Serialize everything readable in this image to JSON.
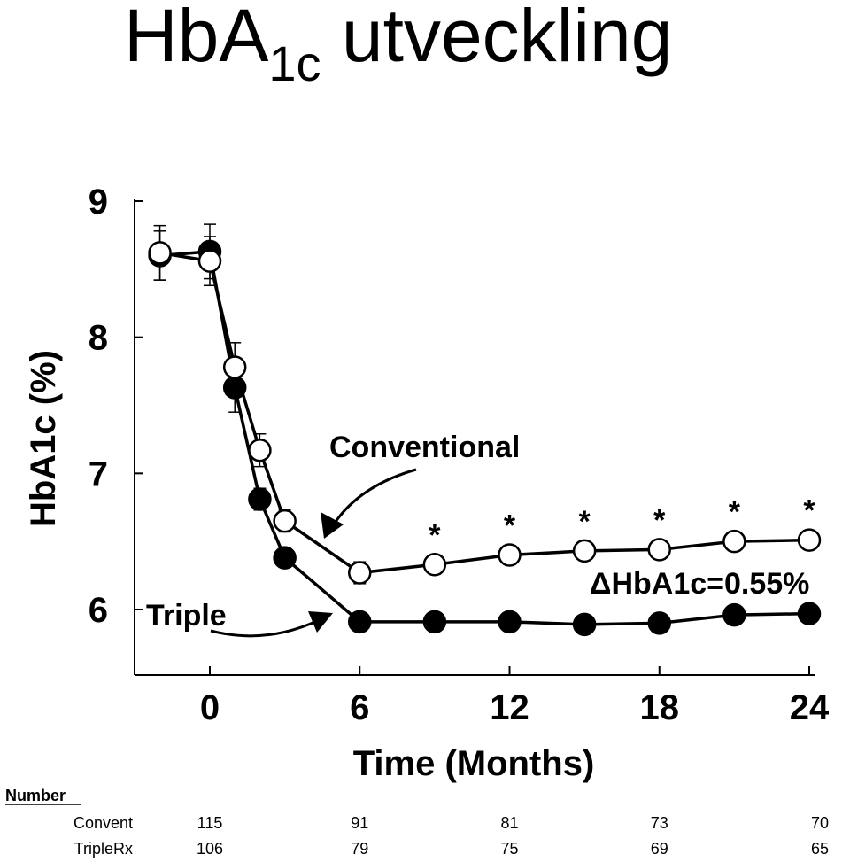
{
  "slide": {
    "title_main": "HbA",
    "title_sub": "1c",
    "title_rest": " utveckling"
  },
  "chart_data": {
    "type": "line",
    "xlabel": "Time (Months)",
    "ylabel": "HbA1c (%)",
    "xlim": [
      -3,
      24
    ],
    "ylim": [
      5.5,
      9
    ],
    "x_ticks": [
      0,
      6,
      12,
      18,
      24
    ],
    "y_ticks": [
      6,
      7,
      8,
      9
    ],
    "series": [
      {
        "name": "Conventional",
        "marker": "open-circle",
        "color": "#000000",
        "x": [
          -2,
          0,
          1,
          2,
          3,
          6,
          9,
          12,
          15,
          18,
          21,
          24
        ],
        "y": [
          8.62,
          8.56,
          7.78,
          7.17,
          6.65,
          6.27,
          6.33,
          6.4,
          6.43,
          6.44,
          6.5,
          6.51
        ],
        "err": [
          0.2,
          0.18,
          0.18,
          0.12,
          0.08,
          0.08,
          0.07,
          0.07,
          0.07,
          0.07,
          0.07,
          0.07
        ]
      },
      {
        "name": "Triple",
        "marker": "filled-circle",
        "color": "#000000",
        "x": [
          -2,
          0,
          1,
          2,
          3,
          6,
          9,
          12,
          15,
          18,
          21,
          24
        ],
        "y": [
          8.6,
          8.63,
          7.63,
          6.81,
          6.38,
          5.91,
          5.91,
          5.91,
          5.89,
          5.9,
          5.96,
          5.97
        ],
        "err": [
          0.18,
          0.2,
          0.18,
          0.08,
          0.07,
          0.06,
          0.06,
          0.06,
          0.06,
          0.06,
          0.06,
          0.06
        ]
      }
    ],
    "significance_marks": {
      "symbol": "*",
      "x": [
        9,
        12,
        15,
        18,
        21,
        24
      ]
    },
    "annotations": {
      "conventional_label": "Conventional",
      "triple_label": "Triple",
      "delta_label": "ΔHbA1c=0.55%"
    },
    "number_at_risk": {
      "header": "Number",
      "x": [
        0,
        6,
        12,
        18,
        24
      ],
      "rows": [
        {
          "label": "Convent",
          "values": [
            "115",
            "91",
            "81",
            "73",
            "70"
          ]
        },
        {
          "label": "TripleRx",
          "values": [
            "106",
            "79",
            "75",
            "69",
            "65"
          ]
        }
      ]
    },
    "grid": false,
    "legend": "none"
  }
}
